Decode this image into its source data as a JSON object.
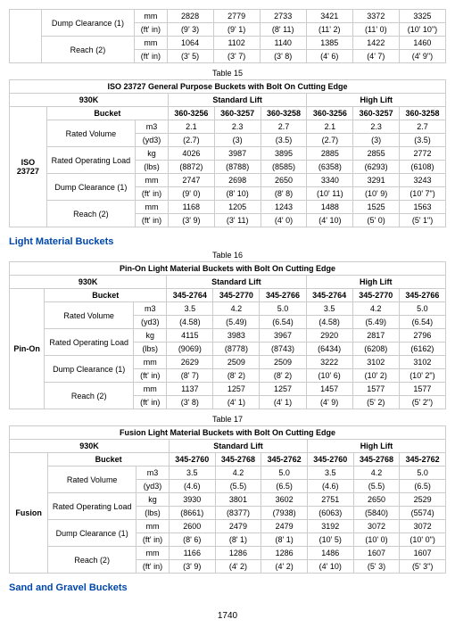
{
  "pageNumber": "1740",
  "sections": {
    "light": "Light Material Buckets",
    "sand": "Sand and Gravel Buckets"
  },
  "table14b": {
    "rows": [
      {
        "attr": "Dump Clearance (1)",
        "u1": "mm",
        "v1": [
          "2828",
          "2779",
          "2733",
          "3421",
          "3372",
          "3325"
        ],
        "u2": "(ft' in)",
        "v2": [
          "(9' 3)",
          "(9' 1)",
          "(8' 11)",
          "(11' 2)",
          "(11' 0)",
          "(10' 10\")"
        ]
      },
      {
        "attr": "Reach (2)",
        "u1": "mm",
        "v1": [
          "1064",
          "1102",
          "1140",
          "1385",
          "1422",
          "1460"
        ],
        "u2": "(ft' in)",
        "v2": [
          "(3' 5)",
          "(3' 7)",
          "(3' 8)",
          "(4' 6)",
          "(4' 7)",
          "(4' 9\")"
        ]
      }
    ]
  },
  "table15": {
    "caption": "Table 15",
    "title": "ISO 23727 General Purpose Buckets with Bolt On Cutting Edge",
    "model": "930K",
    "h1": "Standard Lift",
    "h2": "High Lift",
    "label": "ISO 23727",
    "bucketLabel": "Bucket",
    "cols": [
      "360-3256",
      "360-3257",
      "360-3258",
      "360-3256",
      "360-3257",
      "360-3258"
    ],
    "rows": [
      {
        "attr": "Rated Volume",
        "u1": "m3",
        "v1": [
          "2.1",
          "2.3",
          "2.7",
          "2.1",
          "2.3",
          "2.7"
        ],
        "u2": "(yd3)",
        "v2": [
          "(2.7)",
          "(3)",
          "(3.5)",
          "(2.7)",
          "(3)",
          "(3.5)"
        ]
      },
      {
        "attr": "Rated Operating Load",
        "u1": "kg",
        "v1": [
          "4026",
          "3987",
          "3895",
          "2885",
          "2855",
          "2772"
        ],
        "u2": "(lbs)",
        "v2": [
          "(8872)",
          "(8788)",
          "(8585)",
          "(6358)",
          "(6293)",
          "(6108)"
        ]
      },
      {
        "attr": "Dump Clearance (1)",
        "u1": "mm",
        "v1": [
          "2747",
          "2698",
          "2650",
          "3340",
          "3291",
          "3243"
        ],
        "u2": "(ft' in)",
        "v2": [
          "(9' 0)",
          "(8' 10)",
          "(8' 8)",
          "(10' 11)",
          "(10' 9)",
          "(10' 7\")"
        ]
      },
      {
        "attr": "Reach (2)",
        "u1": "mm",
        "v1": [
          "1168",
          "1205",
          "1243",
          "1488",
          "1525",
          "1563"
        ],
        "u2": "(ft' in)",
        "v2": [
          "(3' 9)",
          "(3' 11)",
          "(4' 0)",
          "(4' 10)",
          "(5' 0)",
          "(5' 1\")"
        ]
      }
    ]
  },
  "table16": {
    "caption": "Table 16",
    "title": "Pin-On Light Material Buckets with Bolt On Cutting Edge",
    "model": "930K",
    "h1": "Standard Lift",
    "h2": "High Lift",
    "label": "Pin-On",
    "bucketLabel": "Bucket",
    "cols": [
      "345-2764",
      "345-2770",
      "345-2766",
      "345-2764",
      "345-2770",
      "345-2766"
    ],
    "rows": [
      {
        "attr": "Rated Volume",
        "u1": "m3",
        "v1": [
          "3.5",
          "4.2",
          "5.0",
          "3.5",
          "4.2",
          "5.0"
        ],
        "u2": "(yd3)",
        "v2": [
          "(4.58)",
          "(5.49)",
          "(6.54)",
          "(4.58)",
          "(5.49)",
          "(6.54)"
        ]
      },
      {
        "attr": "Rated Operating Load",
        "u1": "kg",
        "v1": [
          "4115",
          "3983",
          "3967",
          "2920",
          "2817",
          "2796"
        ],
        "u2": "(lbs)",
        "v2": [
          "(9069)",
          "(8778)",
          "(8743)",
          "(6434)",
          "(6208)",
          "(6162)"
        ]
      },
      {
        "attr": "Dump Clearance (1)",
        "u1": "mm",
        "v1": [
          "2629",
          "2509",
          "2509",
          "3222",
          "3102",
          "3102"
        ],
        "u2": "(ft' in)",
        "v2": [
          "(8' 7)",
          "(8' 2)",
          "(8' 2)",
          "(10' 6)",
          "(10' 2)",
          "(10' 2\")"
        ]
      },
      {
        "attr": "Reach (2)",
        "u1": "mm",
        "v1": [
          "1137",
          "1257",
          "1257",
          "1457",
          "1577",
          "1577"
        ],
        "u2": "(ft' in)",
        "v2": [
          "(3' 8)",
          "(4' 1)",
          "(4' 1)",
          "(4' 9)",
          "(5' 2)",
          "(5' 2\")"
        ]
      }
    ]
  },
  "table17": {
    "caption": "Table 17",
    "title": "Fusion Light Material Buckets with Bolt On Cutting Edge",
    "model": "930K",
    "h1": "Standard Lift",
    "h2": "High Lift",
    "label": "Fusion",
    "bucketLabel": "Bucket",
    "cols": [
      "345-2760",
      "345-2768",
      "345-2762",
      "345-2760",
      "345-2768",
      "345-2762"
    ],
    "rows": [
      {
        "attr": "Rated Volume",
        "u1": "m3",
        "v1": [
          "3.5",
          "4.2",
          "5.0",
          "3.5",
          "4.2",
          "5.0"
        ],
        "u2": "(yd3)",
        "v2": [
          "(4.6)",
          "(5.5)",
          "(6.5)",
          "(4.6)",
          "(5.5)",
          "(6.5)"
        ]
      },
      {
        "attr": "Rated Operating Load",
        "u1": "kg",
        "v1": [
          "3930",
          "3801",
          "3602",
          "2751",
          "2650",
          "2529"
        ],
        "u2": "(lbs)",
        "v2": [
          "(8661)",
          "(8377)",
          "(7938)",
          "(6063)",
          "(5840)",
          "(5574)"
        ]
      },
      {
        "attr": "Dump Clearance (1)",
        "u1": "mm",
        "v1": [
          "2600",
          "2479",
          "2479",
          "3192",
          "3072",
          "3072"
        ],
        "u2": "(ft' in)",
        "v2": [
          "(8' 6)",
          "(8' 1)",
          "(8' 1)",
          "(10' 5)",
          "(10' 0)",
          "(10' 0\")"
        ]
      },
      {
        "attr": "Reach (2)",
        "u1": "mm",
        "v1": [
          "1166",
          "1286",
          "1286",
          "1486",
          "1607",
          "1607"
        ],
        "u2": "(ft' in)",
        "v2": [
          "(3' 9)",
          "(4' 2)",
          "(4' 2)",
          "(4' 10)",
          "(5' 3)",
          "(5' 3\")"
        ]
      }
    ]
  }
}
